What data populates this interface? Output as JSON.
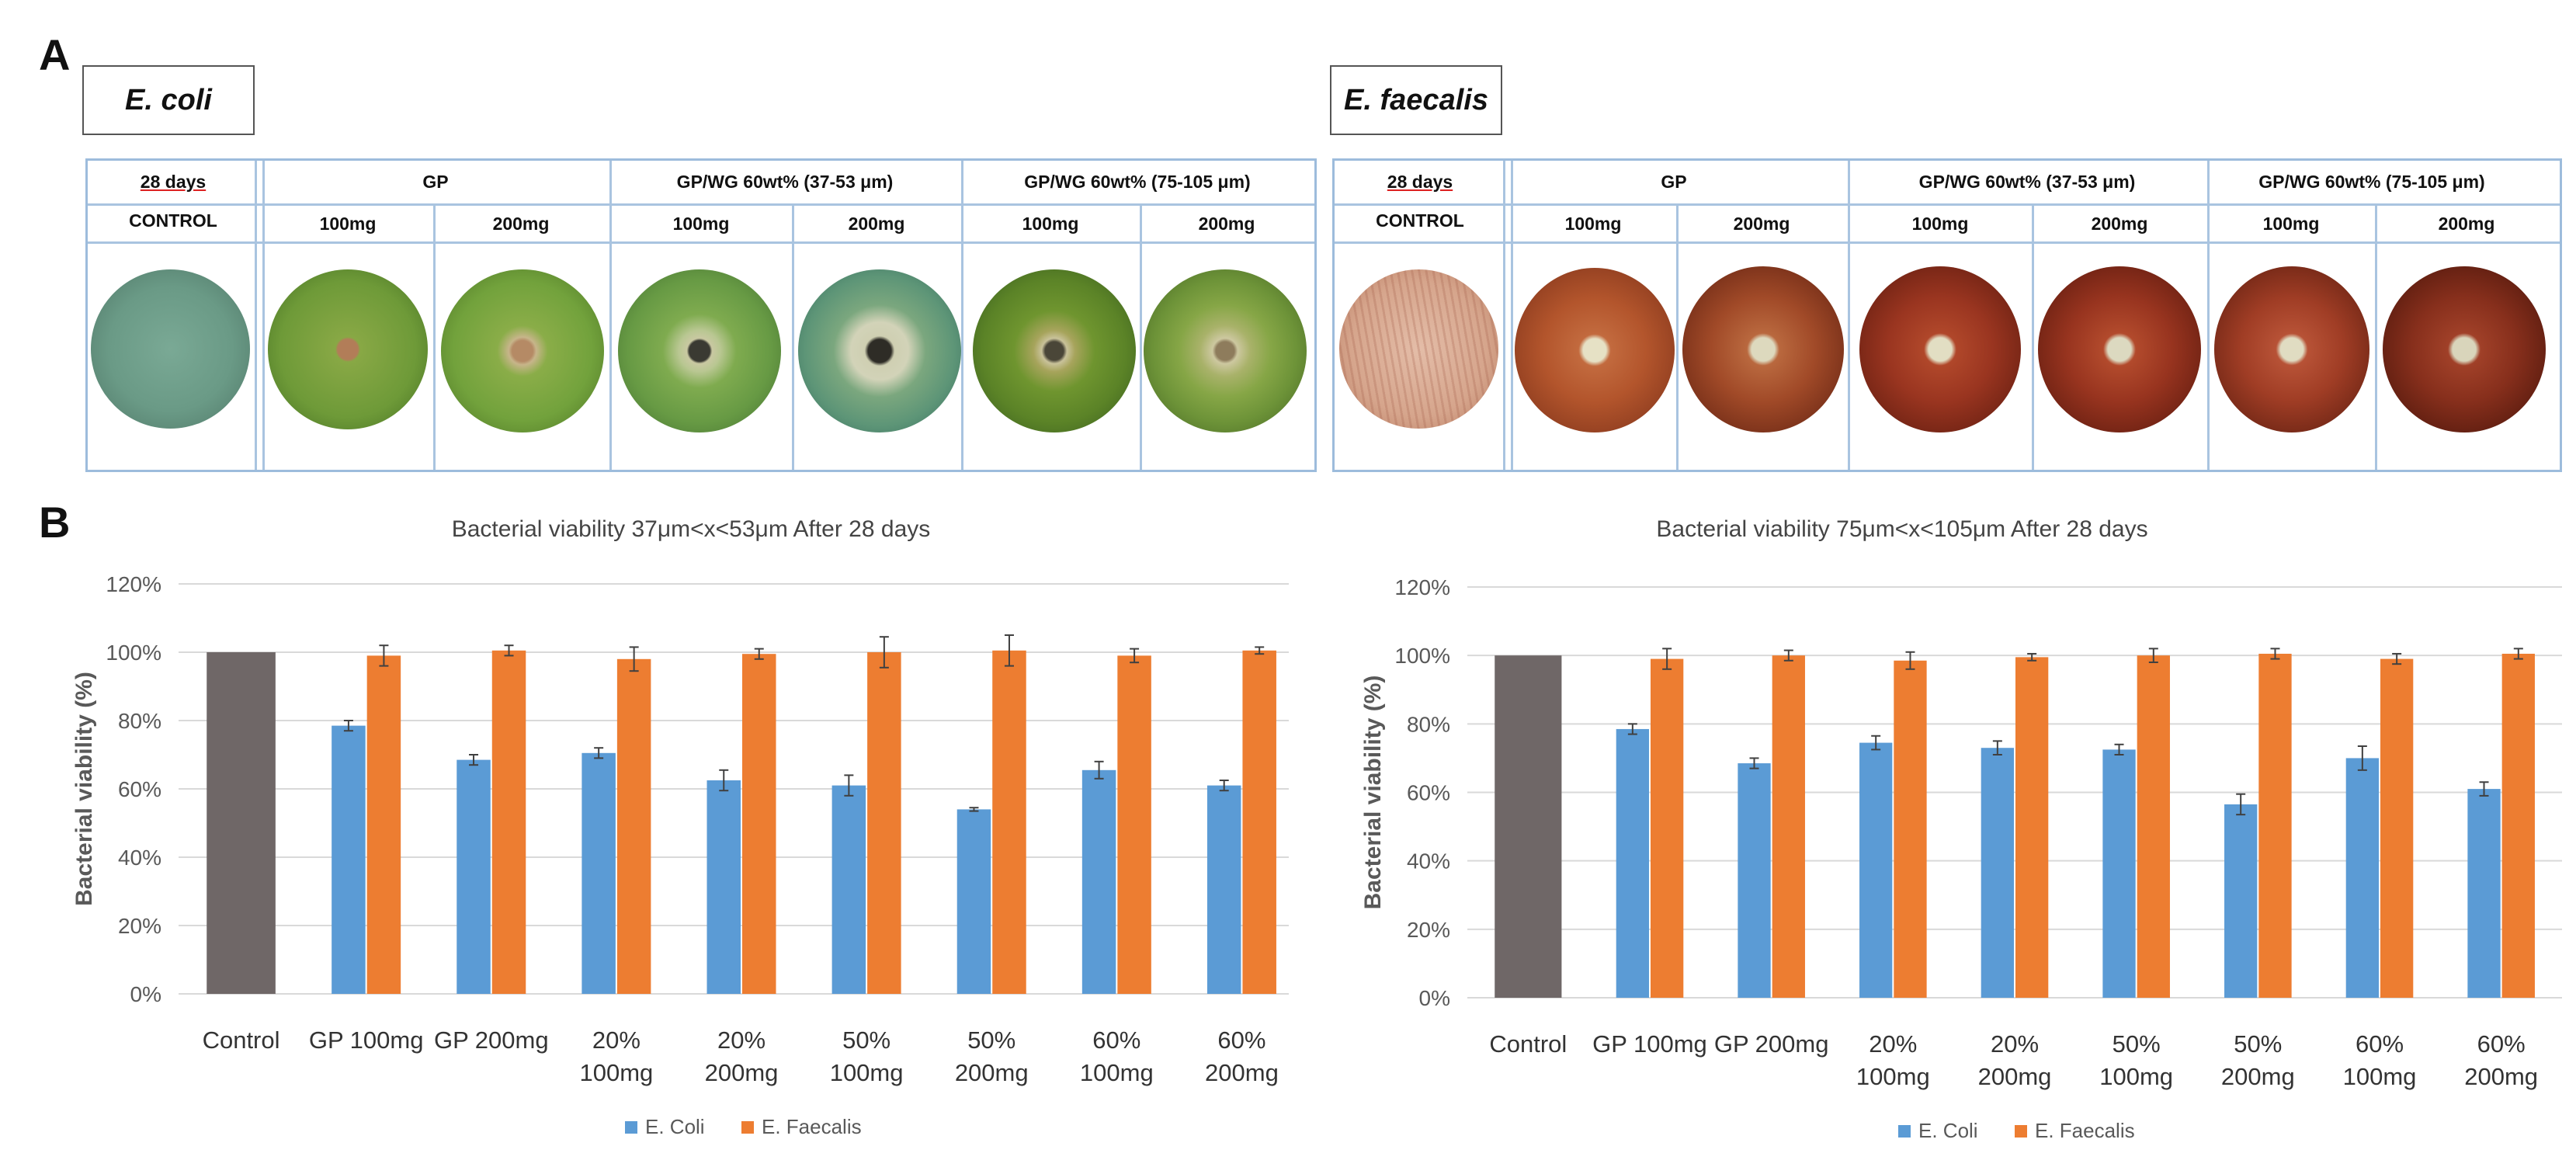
{
  "panels": {
    "a_label": "A",
    "b_label": "B"
  },
  "plates": [
    {
      "species": "E. coli",
      "header": {
        "days": "28 days",
        "control": "CONTROL",
        "group_gp": "GP",
        "group_37_53": "GP/WG 60wt% (37-53 μm)",
        "group_75_105": "GP/WG 60wt% (75-105 μm)",
        "doses": [
          "100mg",
          "200mg",
          "100mg",
          "200mg",
          "100mg",
          "200mg"
        ]
      },
      "colors": {
        "agar": "#6e9c3c",
        "rim": "#c9c4b0",
        "control_agar": "#6f9f8a",
        "disc": "#b08a5c",
        "zone": "#c7c6a0"
      }
    },
    {
      "species": "E. faecalis",
      "header": {
        "days": "28 days",
        "control": "CONTROL",
        "group_gp": "GP",
        "group_37_53": "GP/WG 60wt% (37-53 μm)",
        "group_75_105": "GP/WG 60wt% (75-105 μm)",
        "doses": [
          "100mg",
          "200mg",
          "100mg",
          "200mg",
          "100mg",
          "200mg"
        ]
      },
      "colors": {
        "agar": "#a8462a",
        "rim": "#c9b9ad",
        "control_agar": "#d9ae98",
        "disc": "#d9d4b8",
        "zone": "#d8b090"
      }
    }
  ],
  "chart_data": [
    {
      "type": "bar",
      "title": "Bacterial viability 37μm<x<53μm After 28 days",
      "xlabel": "",
      "ylabel": "Bacterial viability (%)",
      "ylim": [
        0,
        120
      ],
      "yticks": [
        "0%",
        "20%",
        "40%",
        "60%",
        "80%",
        "100%",
        "120%"
      ],
      "categories": [
        [
          "Control"
        ],
        [
          "GP 100mg"
        ],
        [
          "GP 200mg"
        ],
        [
          "20%",
          "100mg"
        ],
        [
          "20%",
          "200mg"
        ],
        [
          "50%",
          "100mg"
        ],
        [
          "50%",
          "200mg"
        ],
        [
          "60%",
          "100mg"
        ],
        [
          "60%",
          "200mg"
        ]
      ],
      "control": {
        "name": "Control",
        "value": 100,
        "color": "#6f6767"
      },
      "series": [
        {
          "name": "E. Coli",
          "color": "#5b9bd5",
          "values": [
            null,
            78.5,
            68.5,
            70.5,
            62.5,
            61,
            54,
            65.5,
            61
          ],
          "errors": [
            null,
            1.5,
            1.5,
            1.5,
            3,
            3,
            0.5,
            2.5,
            1.5
          ]
        },
        {
          "name": "E. Faecalis",
          "color": "#ed7d31",
          "values": [
            null,
            99,
            100.5,
            98,
            99.5,
            100,
            100.5,
            99,
            100.5
          ],
          "errors": [
            null,
            3,
            1.5,
            3.5,
            1.5,
            4.5,
            4.5,
            2,
            1
          ]
        }
      ],
      "legend": "bottom-center"
    },
    {
      "type": "bar",
      "title": "Bacterial viability 75μm<x<105μm After 28 days",
      "xlabel": "",
      "ylabel": "Bacterial viability (%)",
      "ylim": [
        0,
        120
      ],
      "yticks": [
        "0%",
        "20%",
        "40%",
        "60%",
        "80%",
        "100%",
        "120%"
      ],
      "categories": [
        [
          "Control"
        ],
        [
          "GP 100mg"
        ],
        [
          "GP 200mg"
        ],
        [
          "20%",
          "100mg"
        ],
        [
          "20%",
          "200mg"
        ],
        [
          "50%",
          "100mg"
        ],
        [
          "50%",
          "200mg"
        ],
        [
          "60%",
          "100mg"
        ],
        [
          "60%",
          "200mg"
        ]
      ],
      "control": {
        "name": "Control",
        "value": 100,
        "color": "#6f6767"
      },
      "series": [
        {
          "name": "E. Coli",
          "color": "#5b9bd5",
          "values": [
            null,
            78.5,
            68.5,
            74.5,
            73,
            72.5,
            56.5,
            70,
            61
          ],
          "errors": [
            null,
            1.5,
            1.5,
            2,
            2,
            1.5,
            3,
            3.5,
            2
          ]
        },
        {
          "name": "E. Faecalis",
          "color": "#ed7d31",
          "values": [
            null,
            99,
            100,
            98.5,
            99.5,
            100,
            100.5,
            99,
            100.5
          ],
          "errors": [
            null,
            3,
            1.5,
            2.5,
            1,
            2,
            1.5,
            1.5,
            1.5
          ]
        }
      ],
      "legend": "bottom-center"
    }
  ]
}
